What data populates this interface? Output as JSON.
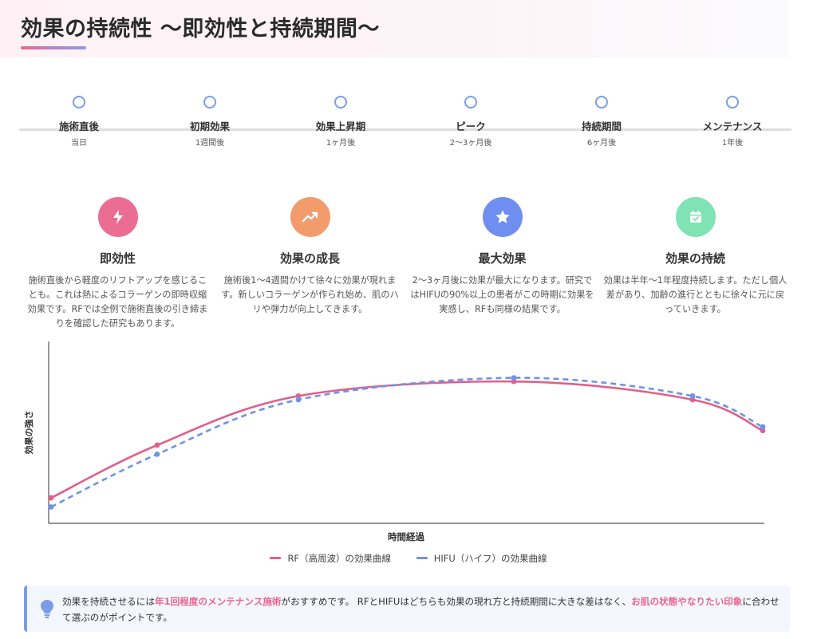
{
  "header": {
    "title": "効果の持続性 〜即効性と持続期間〜"
  },
  "timeline": [
    {
      "label": "施術直後",
      "sub": "当日"
    },
    {
      "label": "初期効果",
      "sub": "1週間後"
    },
    {
      "label": "効果上昇期",
      "sub": "1ヶ月後"
    },
    {
      "label": "ピーク",
      "sub": "2〜3ヶ月後"
    },
    {
      "label": "持続期間",
      "sub": "6ヶ月後"
    },
    {
      "label": "メンテナンス",
      "sub": "1年後"
    }
  ],
  "features": [
    {
      "icon": "lightning-icon",
      "color": "#ec6d94",
      "title": "即効性",
      "desc": "施術直後から軽度のリフトアップを感じることも。これは熱によるコラーゲンの即時収縮効果です。RFでは全例で施術直後の引き締まりを確認した研究もあります。"
    },
    {
      "icon": "trending-up-icon",
      "color": "#f29b6b",
      "title": "効果の成長",
      "desc": "施術後1〜4週間かけて徐々に効果が現れます。新しいコラーゲンが作られ始め、肌のハリや弾力が向上してきます。"
    },
    {
      "icon": "star-icon",
      "color": "#6f8ff0",
      "title": "最大効果",
      "desc": "2〜3ヶ月後に効果が最大になります。研究ではHIFUの90%以上の患者がこの時期に効果を実感し、RFも同様の結果です。"
    },
    {
      "icon": "calendar-check-icon",
      "color": "#7fe3b4",
      "title": "効果の持続",
      "desc": "効果は半年〜1年程度持続します。ただし個人差があり、加齢の進行とともに徐々に元に戻っていきます。"
    }
  ],
  "chart_data": {
    "type": "line",
    "x": [
      "施術直後",
      "初期効果",
      "効果上昇期",
      "ピーク",
      "持続期間",
      "メンテナンス"
    ],
    "xlabel": "時間経過",
    "ylabel": "効果の強さ",
    "ylim": [
      0,
      100
    ],
    "series": [
      {
        "name": "RF（高周波）の効果曲線",
        "color": "#e0608a",
        "dash": false,
        "values": [
          14,
          43,
          70,
          78,
          68,
          51
        ]
      },
      {
        "name": "HIFU（ハイフ）の効果曲線",
        "color": "#6f94e6",
        "dash": true,
        "values": [
          9,
          38,
          68,
          80,
          70,
          53
        ]
      }
    ],
    "grid": false,
    "legend": "bottom"
  },
  "tip": {
    "icon": "lightbulb-icon",
    "text_1": "効果を持続させるには",
    "highlight_1": "年1回程度のメンテナンス施術",
    "text_2": "がおすすめです。 RFとHIFUはどちらも効果の現れ方と持続期間に大きな差はなく、",
    "highlight_2": "お肌の状態やなりたい印象",
    "text_3": "に合わせて選ぶのがポイントです。"
  }
}
